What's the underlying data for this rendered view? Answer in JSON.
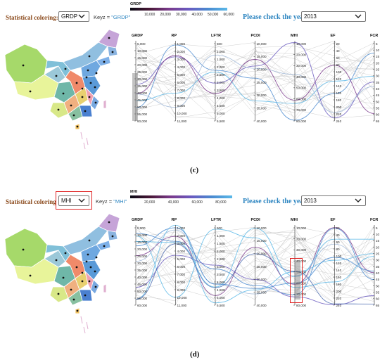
{
  "panel_c": {
    "coloring_label": "Statistical coloring:",
    "coloring_value": "GRDP",
    "keyz_prefix": "Keyz = ",
    "keyz_value": "\"GRDP\"",
    "legend_title": "GRDP",
    "legend_ticks": [
      "10,000",
      "20,000",
      "30,000",
      "40,000",
      "50,000",
      "60,000"
    ],
    "year_label": "Please check the year:",
    "year_value": "2013",
    "caption": "(c)"
  },
  "panel_d": {
    "coloring_label": "Statistical coloring",
    "coloring_value": "MHI",
    "keyz_prefix": "Keyz = ",
    "keyz_value": "\"MHI\"",
    "legend_title": "MHI",
    "legend_ticks": [
      "20,000",
      "40,000",
      "60,000",
      "80,000"
    ],
    "year_label": "Please check the year:",
    "year_value": "2013",
    "caption": "(d)"
  },
  "axes": [
    {
      "name": "GRDP",
      "ticks": [
        "5,000",
        "10,000",
        "15,000",
        "20,000",
        "25,000",
        "30,000",
        "35,000",
        "40,000",
        "45,000",
        "50,000",
        "55,000",
        "60,000"
      ]
    },
    {
      "name": "RP",
      "ticks": [
        "1,000",
        "2,000",
        "3,000",
        "4,000",
        "5,000",
        "6,000",
        "7,000",
        "8,000",
        "9,000",
        "10,000",
        "11,000"
      ]
    },
    {
      "name": "LFTR",
      "ticks": [
        "500",
        "1,000",
        "1,500",
        "2,000",
        "2,500",
        "3,000",
        "3,500",
        "4,000",
        "4,500",
        "5,000",
        "5,500"
      ]
    },
    {
      "name": "PCDI",
      "ticks": [
        "10,000",
        "15,000",
        "20,000",
        "25,000",
        "30,000",
        "35,000",
        "40,000"
      ]
    },
    {
      "name": "MHI",
      "ticks": [
        "10,000",
        "20,000",
        "30,000",
        "40,000",
        "50,000",
        "60,000",
        "70,000",
        "80,000"
      ]
    },
    {
      "name": "EF",
      "ticks": [
        "20",
        "40",
        "60",
        "80",
        "100",
        "120",
        "140",
        "160",
        "180",
        "200",
        "220",
        "240"
      ]
    },
    {
      "name": "FCR",
      "ticks": [
        "5",
        "10",
        "15",
        "20",
        "25",
        "30",
        "35",
        "40",
        "45",
        "50",
        "55",
        "60",
        "65"
      ]
    }
  ],
  "colors": {
    "label_brown": "#8b4a1c",
    "year_blue": "#2e86c1",
    "highlight_red": "#e02020"
  }
}
